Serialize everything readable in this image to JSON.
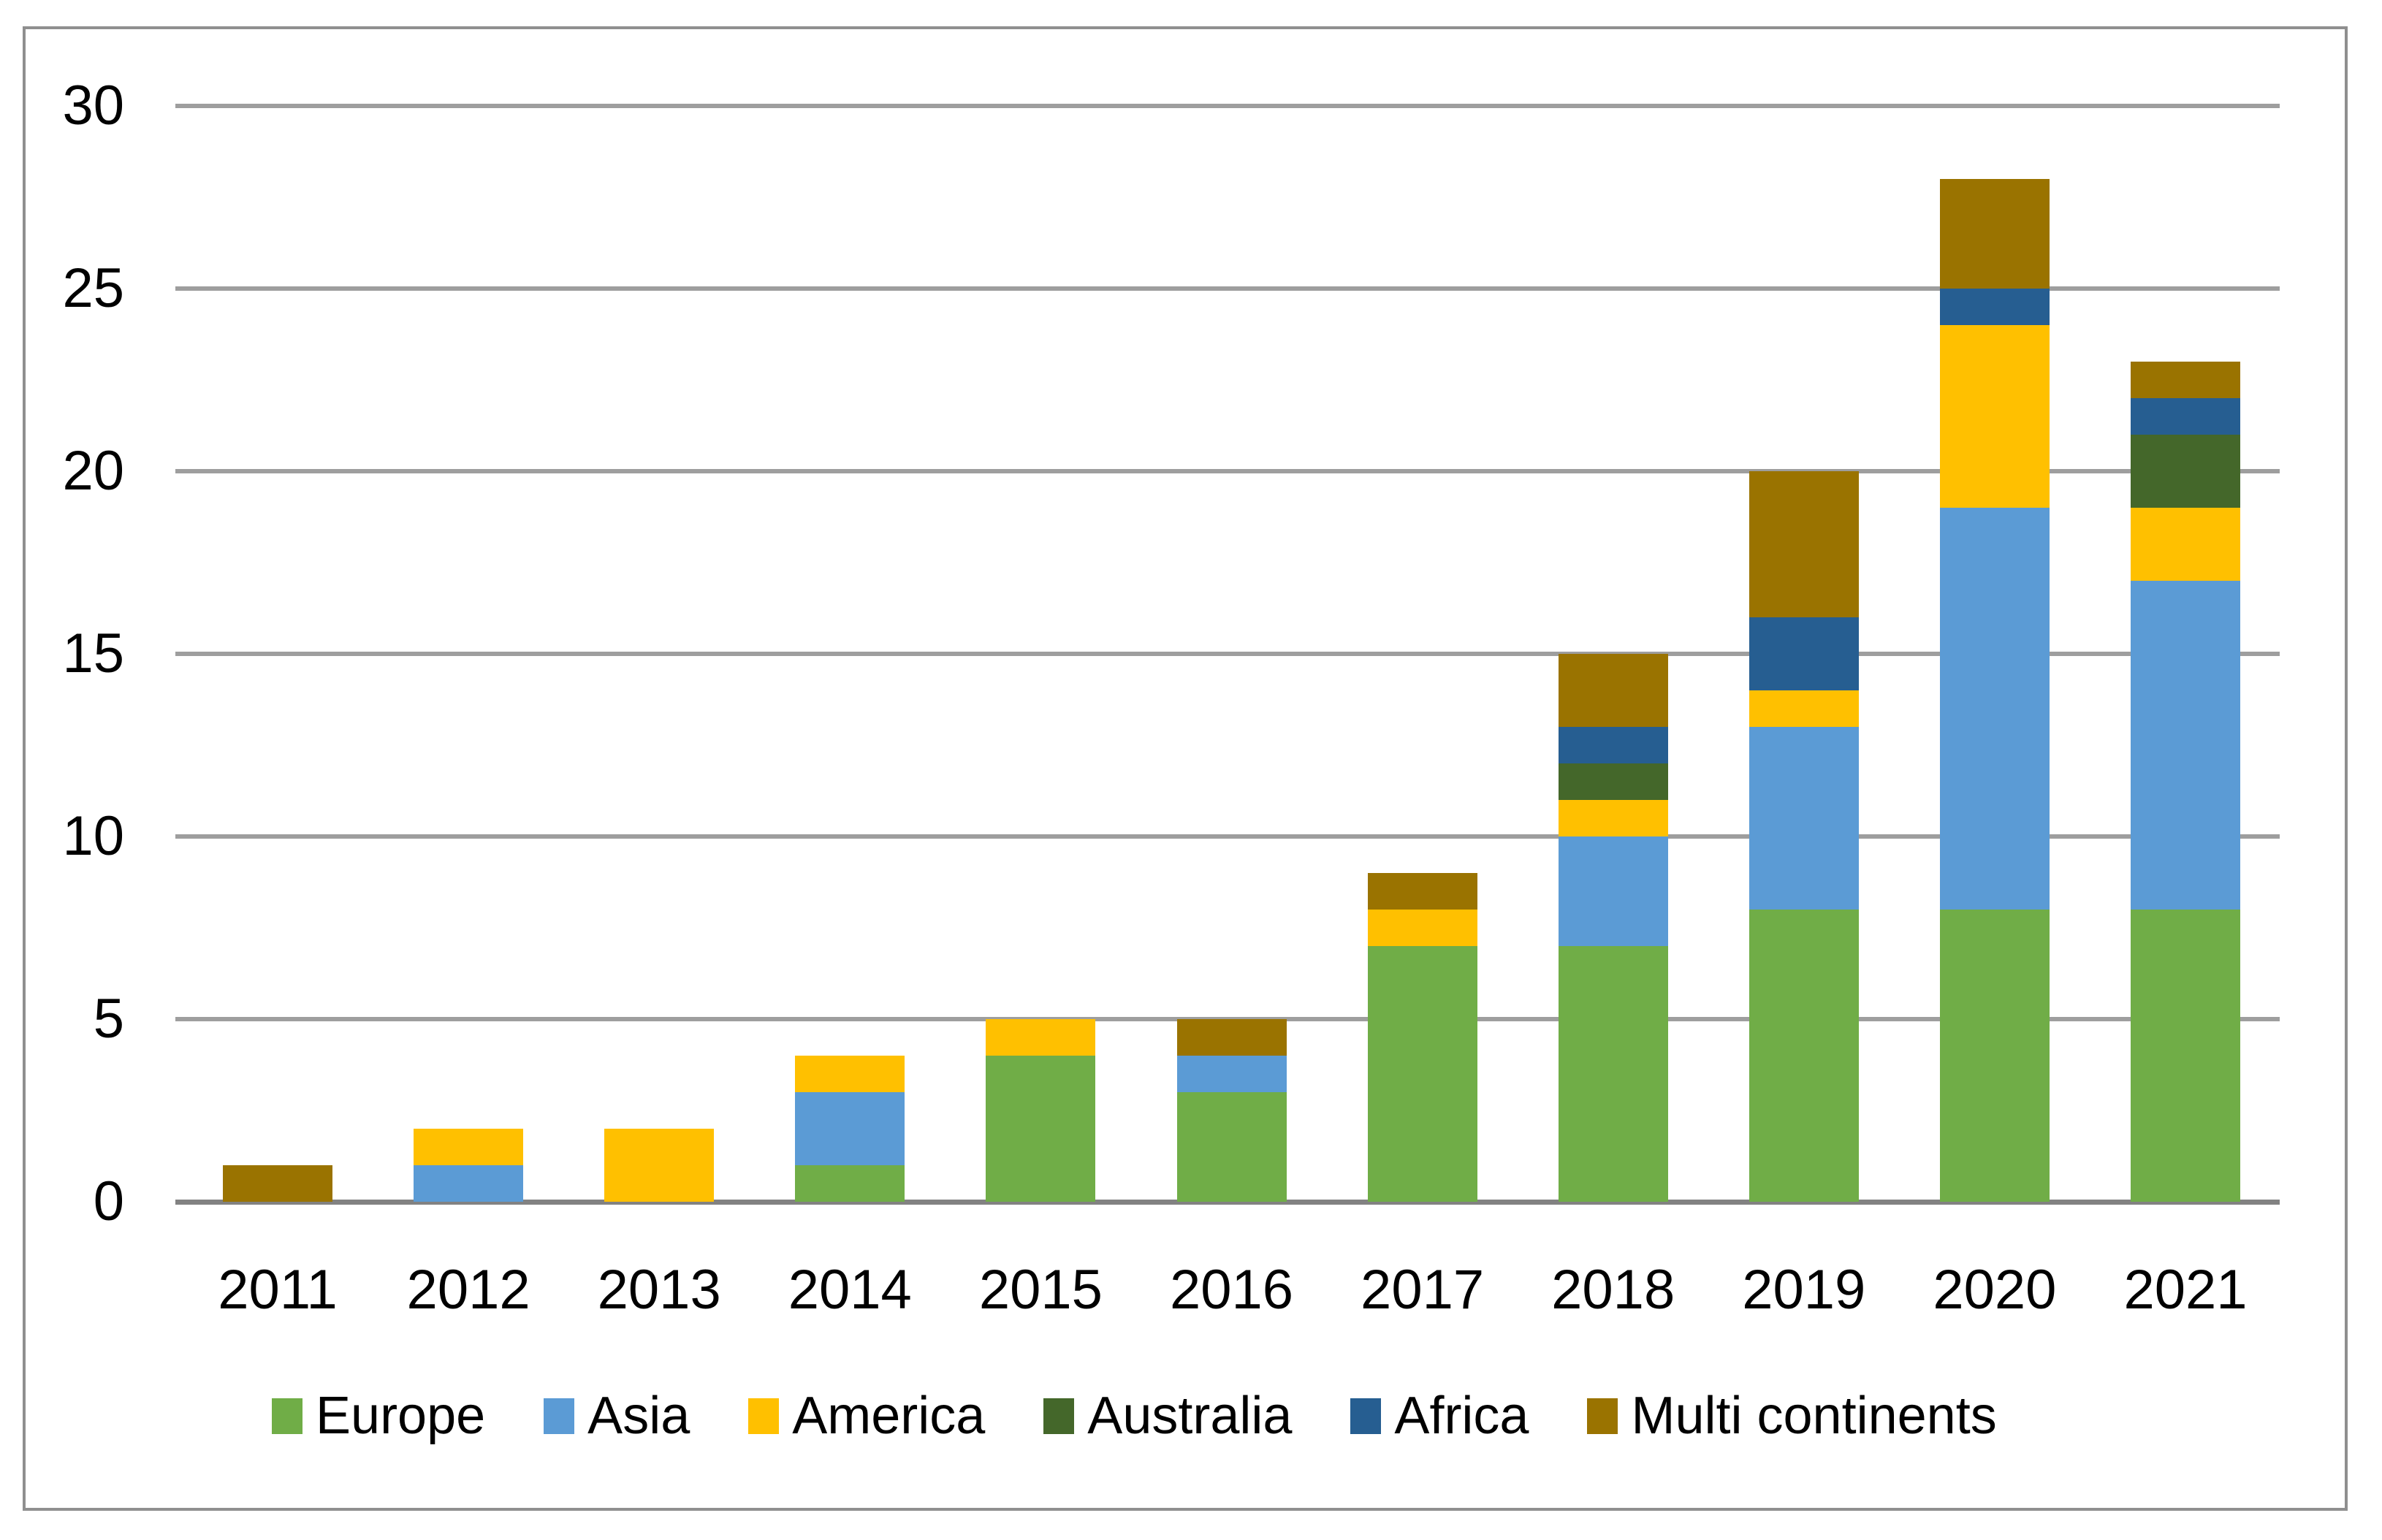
{
  "chart_data": {
    "type": "bar",
    "stacked": true,
    "title": "",
    "categories": [
      "2011",
      "2012",
      "2013",
      "2014",
      "2015",
      "2016",
      "2017",
      "2018",
      "2019",
      "2020",
      "2021"
    ],
    "series": [
      {
        "name": "Europe",
        "color": "#70AD47",
        "values": [
          0,
          0,
          0,
          1,
          4,
          3,
          7,
          7,
          8,
          8,
          8
        ]
      },
      {
        "name": "Asia",
        "color": "#5B9BD5",
        "values": [
          0,
          1,
          0,
          2,
          0,
          1,
          0,
          3,
          5,
          11,
          9
        ]
      },
      {
        "name": "America",
        "color": "#FFC000",
        "values": [
          0,
          1,
          2,
          1,
          1,
          0,
          1,
          1,
          1,
          5,
          2
        ]
      },
      {
        "name": "Australia",
        "color": "#44672A",
        "values": [
          0,
          0,
          0,
          0,
          0,
          0,
          0,
          1,
          0,
          0,
          2
        ]
      },
      {
        "name": "Africa",
        "color": "#265E91",
        "values": [
          0,
          0,
          0,
          0,
          0,
          0,
          0,
          1,
          2,
          1,
          1
        ]
      },
      {
        "name": "Multi continents",
        "color": "#9A7300",
        "values": [
          1,
          0,
          0,
          0,
          0,
          1,
          1,
          2,
          4,
          3,
          1
        ]
      }
    ],
    "totals": [
      1,
      2,
      2,
      4,
      5,
      5,
      9,
      15,
      20,
      28,
      23
    ],
    "y_axis": {
      "min": 0,
      "max": 30,
      "step": 5,
      "tick_labels": [
        "0",
        "5",
        "10",
        "15",
        "20",
        "25",
        "30"
      ]
    },
    "x_axis_label": "",
    "y_axis_label": "",
    "grid": true,
    "legend_position": "bottom"
  },
  "palette": {
    "background": "#FFFFFF",
    "chart_border": "#8F8F8F",
    "gridline": "#9E9E9E",
    "axis_line": "#828282",
    "text": "#000000"
  }
}
